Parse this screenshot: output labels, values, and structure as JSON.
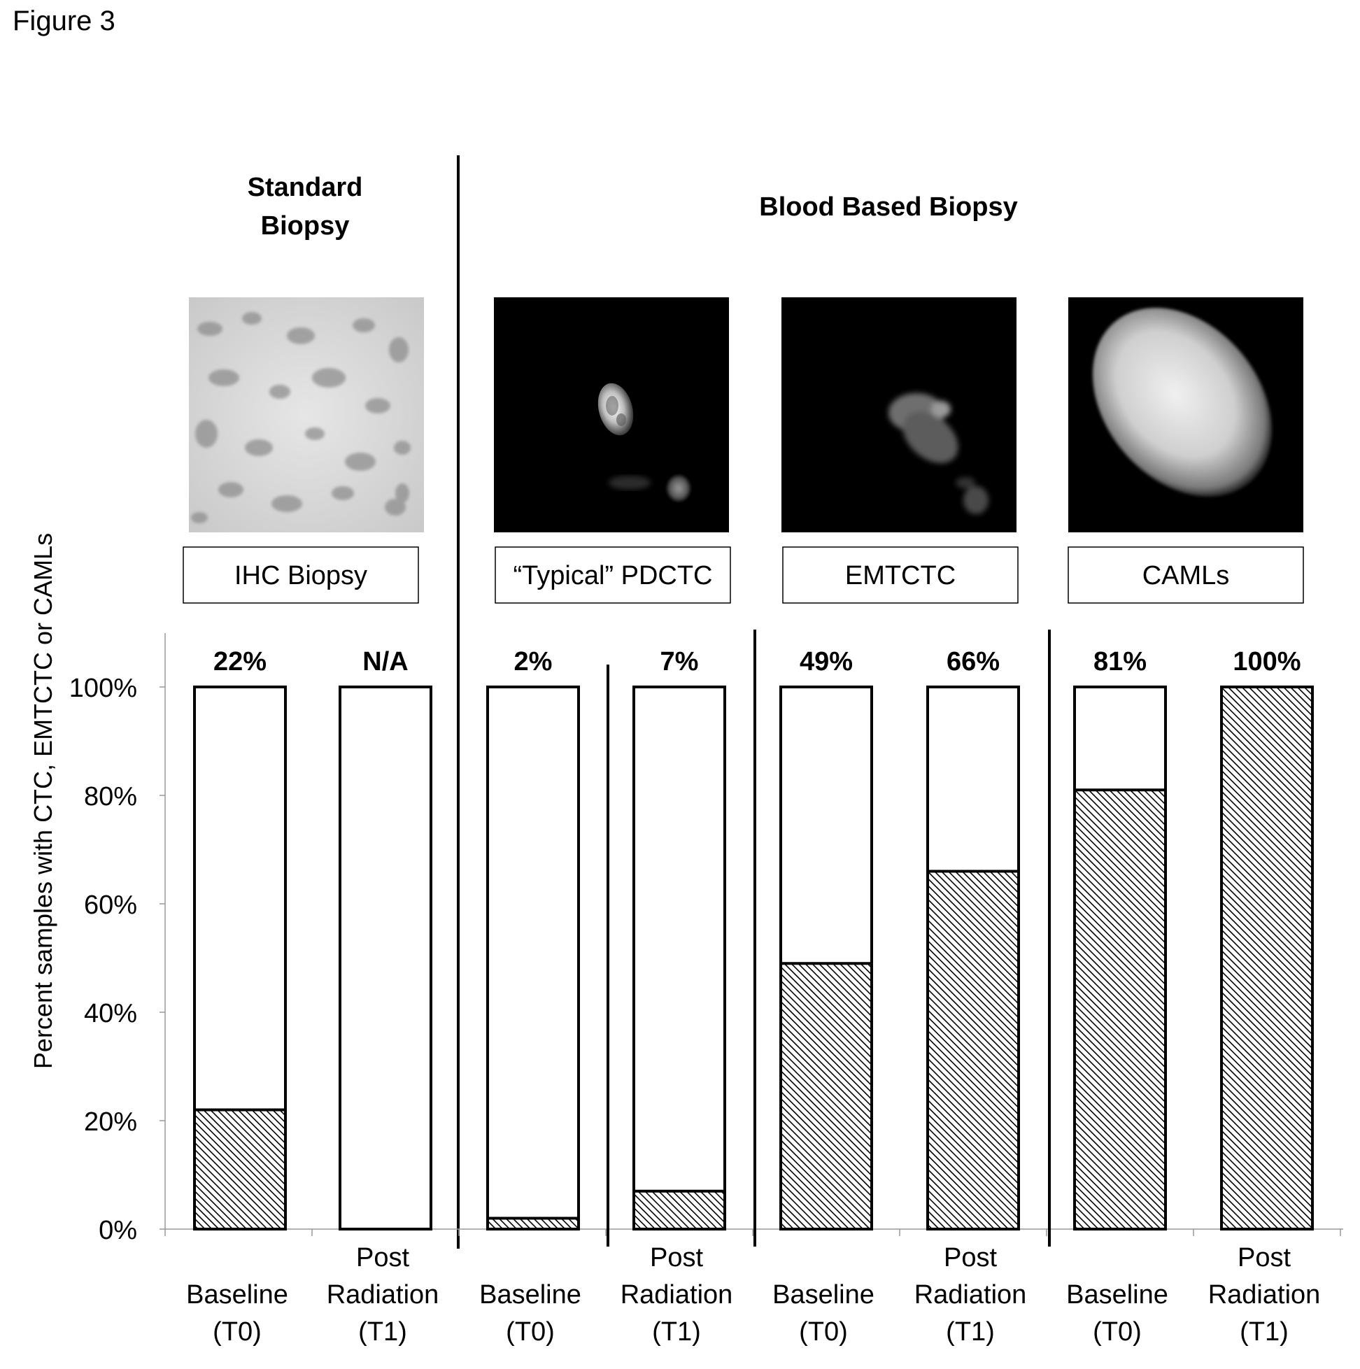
{
  "figure_label": "Figure 3",
  "section_titles": {
    "standard": [
      "Standard",
      "Biopsy"
    ],
    "blood": "Blood Based Biopsy"
  },
  "panels": [
    {
      "label": "IHC Biopsy",
      "image": "ihc-tissue-micrograph"
    },
    {
      "label": "“Typical” PDCTC",
      "image": "pdctc-fluorescence-micrograph"
    },
    {
      "label": "EMTCTC",
      "image": "emtctc-fluorescence-micrograph"
    },
    {
      "label": "CAMLs",
      "image": "caml-fluorescence-micrograph"
    }
  ],
  "colors": {
    "bar_outline": "#000000",
    "hatch": "#000000",
    "micrograph_bg": "#000000",
    "tissue_bg": "#d8d8d8"
  },
  "chart_data": {
    "type": "bar",
    "subtype": "stacked-100-percent",
    "ylabel": "Percent samples with CTC, EMTCTC or CAMLs",
    "ylim": [
      0,
      100
    ],
    "yticks": [
      "0%",
      "20%",
      "40%",
      "60%",
      "80%",
      "100%"
    ],
    "categories": [
      [
        "Baseline",
        "(T0)"
      ],
      [
        "Post",
        "Radiation",
        "(T1)"
      ],
      [
        "Baseline",
        "(T0)"
      ],
      [
        "Post",
        "Radiation",
        "(T1)"
      ],
      [
        "Baseline",
        "(T0)"
      ],
      [
        "Post",
        "Radiation",
        "(T1)"
      ],
      [
        "Baseline",
        "(T0)"
      ],
      [
        "Post",
        "Radiation",
        "(T1)"
      ]
    ],
    "groups": [
      "IHC Biopsy",
      "“Typical” PDCTC",
      "EMTCTC",
      "CAMLs"
    ],
    "values": [
      22,
      0,
      2,
      7,
      49,
      66,
      81,
      100
    ],
    "value_labels": [
      "22%",
      "N/A",
      "2%",
      "7%",
      "49%",
      "66%",
      "81%",
      "100%"
    ],
    "fill": "hatched portion = positive samples; white remainder up to 100%",
    "grid": false,
    "legend": "none"
  }
}
